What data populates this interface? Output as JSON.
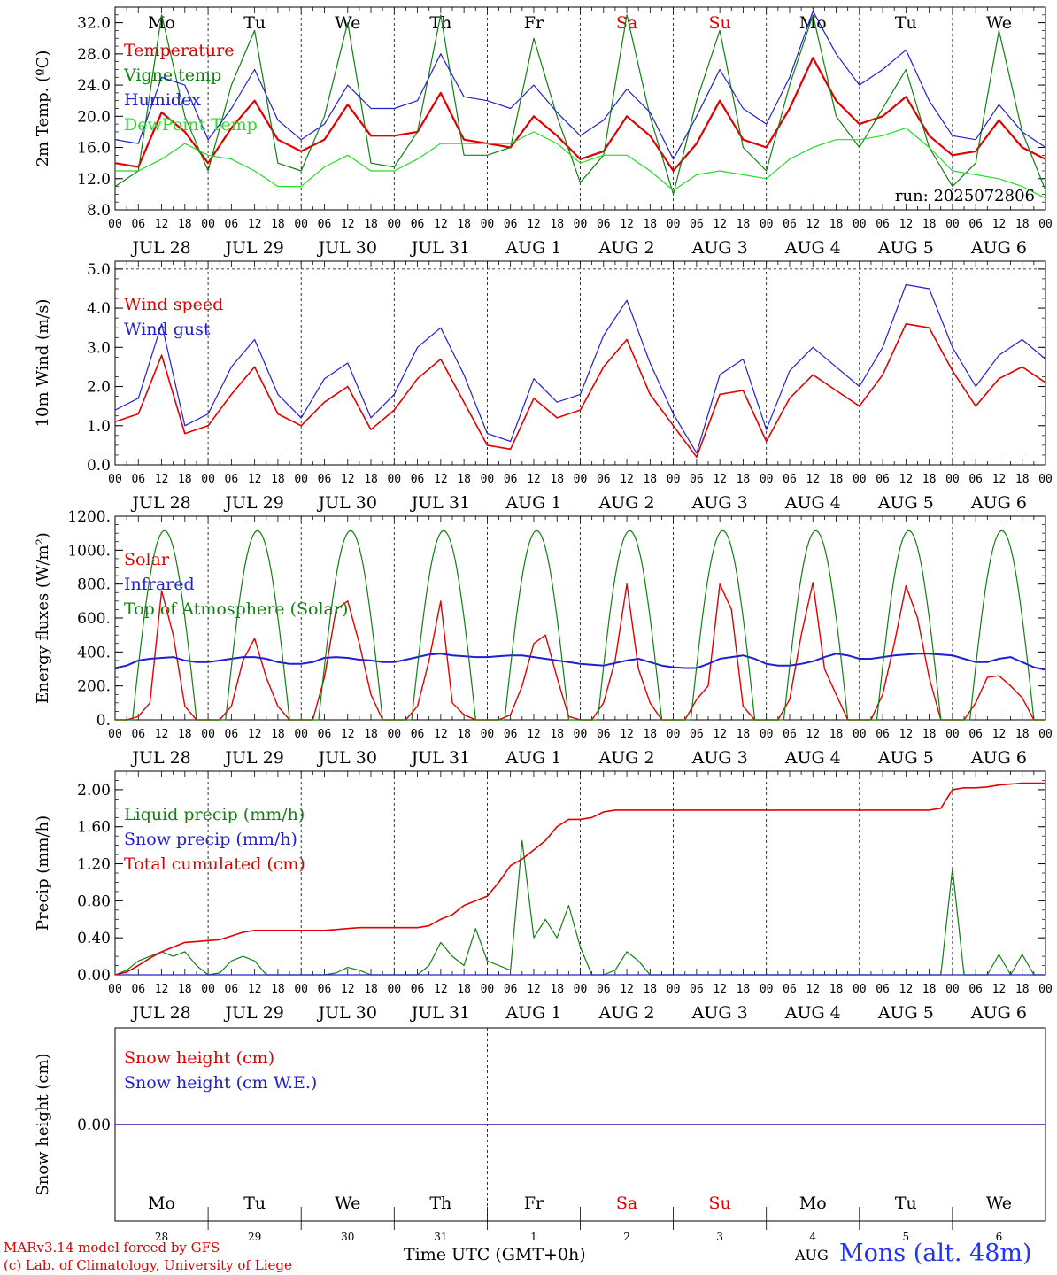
{
  "x_days": {
    "weekdays": [
      "Mo",
      "Tu",
      "We",
      "Th",
      "Fr",
      "Sa",
      "Su",
      "Mo",
      "Tu",
      "We"
    ],
    "weekday_colors": [
      "#000000",
      "#000000",
      "#000000",
      "#000000",
      "#000000",
      "#e00000",
      "#e00000",
      "#000000",
      "#000000",
      "#000000"
    ],
    "date_labels": [
      "JUL 28",
      "JUL 29",
      "JUL 30",
      "JUL 31",
      "AUG  1",
      "AUG  2",
      "AUG  3",
      "AUG  4",
      "AUG  5",
      "AUG  6"
    ],
    "day_numbers": [
      "28",
      "29",
      "30",
      "31",
      "1",
      "2",
      "3",
      "4",
      "5",
      "6"
    ],
    "hour_ticks": [
      "00",
      "06",
      "12",
      "18"
    ],
    "end_tick": "00"
  },
  "footer": {
    "credit_line1": "MARv3.14 model forced by GFS",
    "credit_line2": "(c) Lab. of Climatology, University of Liege",
    "time_axis_label": "Time UTC (GMT+0h)",
    "month_label": "AUG",
    "station": "Mons (alt. 48m)"
  },
  "chart_data": [
    {
      "type": "line",
      "ylabel": "2m Temp. (ºC)",
      "ylim": [
        8,
        34
      ],
      "yticks": [
        "8.0",
        "12.0",
        "16.0",
        "20.0",
        "24.0",
        "28.0",
        "32.0"
      ],
      "ytick_values": [
        8,
        12,
        16,
        20,
        24,
        28,
        32
      ],
      "minor_step": 1,
      "annotation": "run: 2025072806",
      "show_weekdays": true,
      "x_hours": [
        0,
        6,
        12,
        18,
        24,
        30,
        36,
        42,
        48,
        54,
        60,
        66,
        72,
        78,
        84,
        90,
        96,
        102,
        108,
        114,
        120,
        126,
        132,
        138,
        144,
        150,
        156,
        162,
        168,
        174,
        180,
        186,
        192,
        198,
        204,
        210,
        216,
        222,
        228,
        234,
        240
      ],
      "series": [
        {
          "name": "Temperature",
          "color": "#e00000",
          "width": 2.2,
          "values": [
            14.0,
            13.5,
            20.5,
            18.0,
            14.0,
            18.5,
            22.0,
            17.0,
            15.5,
            17.0,
            21.5,
            17.5,
            17.5,
            18.0,
            23.0,
            17.0,
            16.5,
            16.0,
            20.0,
            17.5,
            14.5,
            15.5,
            20.0,
            17.5,
            13.0,
            16.5,
            22.0,
            17.0,
            16.0,
            21.0,
            27.5,
            22.0,
            19.0,
            20.0,
            22.5,
            17.5,
            15.0,
            15.5,
            19.5,
            16.0,
            14.5
          ]
        },
        {
          "name": "Vigne temp",
          "color": "#108010",
          "width": 1.2,
          "values": [
            11.0,
            13.0,
            33.0,
            20.0,
            13.0,
            24.0,
            31.0,
            14.0,
            13.0,
            20.0,
            32.0,
            14.0,
            13.5,
            18.0,
            33.0,
            15.0,
            15.0,
            16.0,
            30.0,
            20.0,
            11.5,
            15.0,
            33.0,
            20.0,
            10.0,
            22.0,
            31.0,
            16.0,
            13.0,
            24.0,
            33.0,
            20.0,
            16.0,
            21.0,
            26.0,
            16.0,
            11.0,
            14.0,
            31.0,
            18.0,
            10.5
          ]
        },
        {
          "name": "Humidex",
          "color": "#2020d0",
          "width": 1.2,
          "values": [
            17.0,
            16.5,
            25.0,
            24.0,
            17.0,
            21.0,
            26.0,
            19.5,
            17.0,
            19.0,
            24.0,
            21.0,
            21.0,
            22.0,
            28.0,
            22.5,
            22.0,
            21.0,
            24.0,
            20.5,
            17.5,
            19.5,
            23.5,
            20.5,
            14.5,
            20.0,
            26.0,
            21.0,
            19.0,
            25.0,
            33.5,
            28.0,
            24.0,
            26.0,
            28.5,
            22.0,
            17.5,
            17.0,
            21.5,
            18.0,
            16.0
          ]
        },
        {
          "name": "DewPoint Temp",
          "color": "#22dd22",
          "width": 1.2,
          "values": [
            13.0,
            13.0,
            14.5,
            16.5,
            15.0,
            14.5,
            13.0,
            11.0,
            11.0,
            13.5,
            15.0,
            13.0,
            13.0,
            14.5,
            16.5,
            16.5,
            16.5,
            16.5,
            18.0,
            16.5,
            14.0,
            15.0,
            15.0,
            13.0,
            10.5,
            12.5,
            13.0,
            12.5,
            12.0,
            14.5,
            16.0,
            17.0,
            17.0,
            17.5,
            18.5,
            16.0,
            13.0,
            12.5,
            12.0,
            11.0,
            9.5
          ]
        }
      ]
    },
    {
      "type": "line",
      "ylabel": "10m Wind (m/s)",
      "ylim": [
        0,
        5.2
      ],
      "yticks": [
        "0.0",
        "1.0",
        "2.0",
        "3.0",
        "4.0",
        "5.0"
      ],
      "ytick_values": [
        0,
        1,
        2,
        3,
        4,
        5
      ],
      "minor_step": 0.25,
      "hline": 5.0,
      "show_weekdays": false,
      "x_hours": [
        0,
        6,
        12,
        18,
        24,
        30,
        36,
        42,
        48,
        54,
        60,
        66,
        72,
        78,
        84,
        90,
        96,
        102,
        108,
        114,
        120,
        126,
        132,
        138,
        144,
        150,
        156,
        162,
        168,
        174,
        180,
        186,
        192,
        198,
        204,
        210,
        216,
        222,
        228,
        234,
        240
      ],
      "series": [
        {
          "name": "Wind speed",
          "color": "#e00000",
          "width": 1.6,
          "values": [
            1.1,
            1.3,
            2.8,
            0.8,
            1.0,
            1.8,
            2.5,
            1.3,
            1.0,
            1.6,
            2.0,
            0.9,
            1.4,
            2.2,
            2.7,
            1.6,
            0.5,
            0.4,
            1.7,
            1.2,
            1.4,
            2.5,
            3.2,
            1.8,
            1.0,
            0.2,
            1.8,
            1.9,
            0.6,
            1.7,
            2.3,
            1.9,
            1.5,
            2.3,
            3.6,
            3.5,
            2.4,
            1.5,
            2.2,
            2.5,
            2.1
          ]
        },
        {
          "name": "Wind gust",
          "color": "#2020d0",
          "width": 1.2,
          "values": [
            1.4,
            1.7,
            3.6,
            1.0,
            1.3,
            2.5,
            3.2,
            1.8,
            1.2,
            2.2,
            2.6,
            1.2,
            1.8,
            3.0,
            3.5,
            2.3,
            0.8,
            0.6,
            2.2,
            1.6,
            1.8,
            3.3,
            4.2,
            2.6,
            1.3,
            0.3,
            2.3,
            2.7,
            0.9,
            2.4,
            3.0,
            2.5,
            2.0,
            3.0,
            4.6,
            4.5,
            3.0,
            2.0,
            2.8,
            3.2,
            2.7
          ]
        }
      ]
    },
    {
      "type": "line",
      "ylabel": "Energy fluxes (W/m²)",
      "ylim": [
        0,
        1200
      ],
      "yticks": [
        "0.",
        "200.",
        "400.",
        "600.",
        "800.",
        "1000.",
        "1200."
      ],
      "ytick_values": [
        0,
        200,
        400,
        600,
        800,
        1000,
        1200
      ],
      "minor_step": 50,
      "show_weekdays": false,
      "x_hours": [
        0,
        3,
        6,
        9,
        12,
        15,
        18,
        21,
        24,
        27,
        30,
        33,
        36,
        39,
        42,
        45,
        48,
        51,
        54,
        57,
        60,
        63,
        66,
        69,
        72,
        75,
        78,
        81,
        84,
        87,
        90,
        93,
        96,
        99,
        102,
        105,
        108,
        111,
        114,
        117,
        120,
        123,
        126,
        129,
        132,
        135,
        138,
        141,
        144,
        147,
        150,
        153,
        156,
        159,
        162,
        165,
        168,
        171,
        174,
        177,
        180,
        183,
        186,
        189,
        192,
        195,
        198,
        201,
        204,
        207,
        210,
        213,
        216,
        219,
        222,
        225,
        228,
        231,
        234,
        237,
        240
      ],
      "series": [
        {
          "name": "Solar",
          "color": "#e00000",
          "width": 1.4,
          "values": [
            0,
            0,
            20,
            100,
            760,
            500,
            80,
            0,
            0,
            0,
            80,
            350,
            480,
            250,
            80,
            0,
            0,
            0,
            250,
            650,
            700,
            450,
            150,
            0,
            0,
            0,
            80,
            350,
            700,
            100,
            30,
            0,
            0,
            0,
            30,
            200,
            450,
            500,
            250,
            20,
            0,
            0,
            100,
            350,
            800,
            300,
            100,
            0,
            0,
            0,
            120,
            200,
            800,
            650,
            80,
            0,
            0,
            0,
            120,
            500,
            810,
            300,
            150,
            0,
            0,
            0,
            150,
            450,
            790,
            600,
            250,
            0,
            0,
            0,
            100,
            250,
            260,
            200,
            130,
            0,
            0
          ]
        },
        {
          "name": "Infrared",
          "color": "#2020d0",
          "width": 2.0,
          "values": [
            305,
            320,
            350,
            360,
            365,
            370,
            350,
            340,
            340,
            350,
            360,
            370,
            370,
            360,
            340,
            330,
            330,
            340,
            365,
            370,
            365,
            355,
            350,
            340,
            340,
            355,
            370,
            385,
            390,
            380,
            375,
            370,
            370,
            375,
            380,
            380,
            370,
            360,
            350,
            340,
            330,
            325,
            320,
            335,
            350,
            360,
            340,
            320,
            310,
            305,
            305,
            330,
            360,
            370,
            380,
            360,
            330,
            320,
            320,
            330,
            345,
            370,
            390,
            380,
            360,
            360,
            370,
            380,
            385,
            390,
            390,
            385,
            380,
            360,
            340,
            340,
            360,
            370,
            340,
            310,
            295
          ]
        },
        {
          "name": "Top of Atmosphere (Solar)",
          "color": "#108010",
          "width": 1.2,
          "sine": true,
          "peak": 1115,
          "rise": 4.5,
          "set": 21.0
        }
      ]
    },
    {
      "type": "line",
      "ylabel": "Precip (mm/h)",
      "ylim": [
        0,
        2.2
      ],
      "yticks": [
        "0.00",
        "0.40",
        "0.80",
        "1.20",
        "1.60",
        "2.00"
      ],
      "ytick_values": [
        0,
        0.4,
        0.8,
        1.2,
        1.6,
        2.0
      ],
      "minor_step": 0.1,
      "show_weekdays": false,
      "x_hours": [
        0,
        3,
        6,
        9,
        12,
        15,
        18,
        21,
        24,
        27,
        30,
        33,
        36,
        39,
        42,
        45,
        48,
        51,
        54,
        57,
        60,
        63,
        66,
        69,
        72,
        75,
        78,
        81,
        84,
        87,
        90,
        93,
        96,
        99,
        102,
        105,
        108,
        111,
        114,
        117,
        120,
        123,
        126,
        129,
        132,
        135,
        138,
        141,
        144,
        147,
        150,
        153,
        156,
        159,
        162,
        165,
        168,
        171,
        174,
        177,
        180,
        183,
        186,
        189,
        192,
        195,
        198,
        201,
        204,
        207,
        210,
        213,
        216,
        219,
        222,
        225,
        228,
        231,
        234,
        237,
        240
      ],
      "series": [
        {
          "name": "Liquid precip (mm/h)",
          "color": "#108010",
          "width": 1.2,
          "values": [
            0,
            0.05,
            0.15,
            0.2,
            0.25,
            0.2,
            0.25,
            0.1,
            0,
            0.02,
            0.15,
            0.2,
            0.15,
            0,
            0,
            0,
            0,
            0,
            0,
            0.02,
            0.08,
            0.05,
            0,
            0,
            0,
            0,
            0,
            0.1,
            0.35,
            0.2,
            0.1,
            0.5,
            0.15,
            0.1,
            0.05,
            1.45,
            0.4,
            0.6,
            0.4,
            0.75,
            0.3,
            0,
            0,
            0.05,
            0.25,
            0.15,
            0,
            0,
            0,
            0,
            0,
            0,
            0,
            0,
            0,
            0,
            0,
            0,
            0,
            0,
            0,
            0,
            0,
            0,
            0,
            0,
            0,
            0,
            0,
            0,
            0,
            0,
            1.15,
            0,
            0,
            0,
            0.22,
            0,
            0.22,
            0,
            0
          ]
        },
        {
          "name": "Snow precip (mm/h)",
          "color": "#2020d0",
          "width": 1.2,
          "values": [
            0,
            0,
            0,
            0,
            0,
            0,
            0,
            0,
            0,
            0,
            0,
            0,
            0,
            0,
            0,
            0,
            0,
            0,
            0,
            0,
            0,
            0,
            0,
            0,
            0,
            0,
            0,
            0,
            0,
            0,
            0,
            0,
            0,
            0,
            0,
            0,
            0,
            0,
            0,
            0,
            0,
            0,
            0,
            0,
            0,
            0,
            0,
            0,
            0,
            0,
            0,
            0,
            0,
            0,
            0,
            0,
            0,
            0,
            0,
            0,
            0,
            0,
            0,
            0,
            0,
            0,
            0,
            0,
            0,
            0,
            0,
            0,
            0,
            0,
            0,
            0,
            0,
            0,
            0,
            0,
            0
          ]
        },
        {
          "name": "Total cumulated (cm)",
          "color": "#e00000",
          "width": 1.6,
          "values": [
            0,
            0.03,
            0.1,
            0.18,
            0.25,
            0.3,
            0.35,
            0.36,
            0.37,
            0.38,
            0.42,
            0.46,
            0.48,
            0.48,
            0.48,
            0.48,
            0.48,
            0.48,
            0.48,
            0.49,
            0.5,
            0.51,
            0.51,
            0.51,
            0.51,
            0.51,
            0.51,
            0.53,
            0.6,
            0.65,
            0.75,
            0.8,
            0.85,
            1.0,
            1.18,
            1.25,
            1.35,
            1.45,
            1.6,
            1.68,
            1.68,
            1.7,
            1.76,
            1.78,
            1.78,
            1.78,
            1.78,
            1.78,
            1.78,
            1.78,
            1.78,
            1.78,
            1.78,
            1.78,
            1.78,
            1.78,
            1.78,
            1.78,
            1.78,
            1.78,
            1.78,
            1.78,
            1.78,
            1.78,
            1.78,
            1.78,
            1.78,
            1.78,
            1.78,
            1.78,
            1.78,
            1.8,
            2.0,
            2.02,
            2.02,
            2.03,
            2.05,
            2.06,
            2.07,
            2.07,
            2.07
          ]
        }
      ]
    },
    {
      "type": "line",
      "ylabel": "Snow height (cm)",
      "ylim": [
        -1,
        1
      ],
      "yticks": [
        "0.00"
      ],
      "ytick_values": [
        0
      ],
      "minor_step": null,
      "show_weekdays": false,
      "x_hours": [
        0,
        240
      ],
      "series": [
        {
          "name": "Snow height (cm)",
          "color": "#e00000",
          "width": 1.4,
          "values": [
            0,
            0
          ]
        },
        {
          "name": "Snow height (cm W.E.)",
          "color": "#2020d0",
          "width": 1.2,
          "values": [
            0,
            0
          ]
        }
      ]
    }
  ]
}
